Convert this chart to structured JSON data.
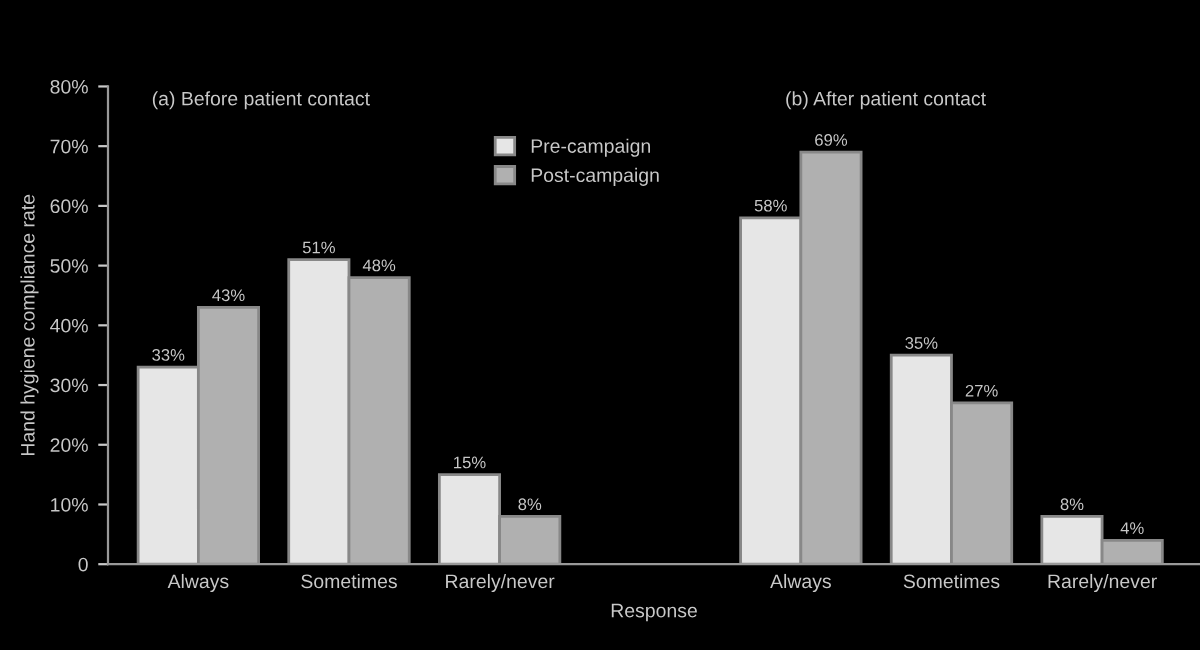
{
  "chart_data": {
    "type": "bar",
    "categories": [
      "Always",
      "Sometimes",
      "Rarely/never",
      null,
      "Always",
      "Sometimes",
      "Rarely/never"
    ],
    "series": [
      {
        "name": "Pre-campaign",
        "color": "#e6e6e6",
        "values": [
          33,
          51,
          15,
          null,
          58,
          35,
          8
        ]
      },
      {
        "name": "Post-campaign",
        "color": "#b0b0b0",
        "values": [
          43,
          48,
          8,
          null,
          69,
          27,
          4
        ]
      }
    ],
    "value_labels": [
      [
        "33%",
        "51%",
        "15%",
        null,
        "58%",
        "35%",
        "8%"
      ],
      [
        "43%",
        "48%",
        "8%",
        null,
        "69%",
        "27%",
        "4%"
      ]
    ],
    "xlabel": "Response",
    "ylabel": "Hand hygiene compliance rate",
    "ylim": [
      0,
      80
    ],
    "yticks": [
      0,
      {
        "value": 10,
        "label": "10%"
      },
      {
        "value": 20,
        "label": "20%"
      },
      {
        "value": 30,
        "label": "30%"
      },
      {
        "value": 40,
        "label": "40%"
      },
      {
        "value": 50,
        "label": "50%"
      },
      {
        "value": 60,
        "label": "60%"
      },
      {
        "value": 70,
        "label": "70%"
      },
      {
        "value": 80,
        "label": "80%"
      }
    ],
    "annotations": [
      "(a) Before patient contact",
      "(b) After patient contact"
    ],
    "legend": "top",
    "grid": false
  }
}
